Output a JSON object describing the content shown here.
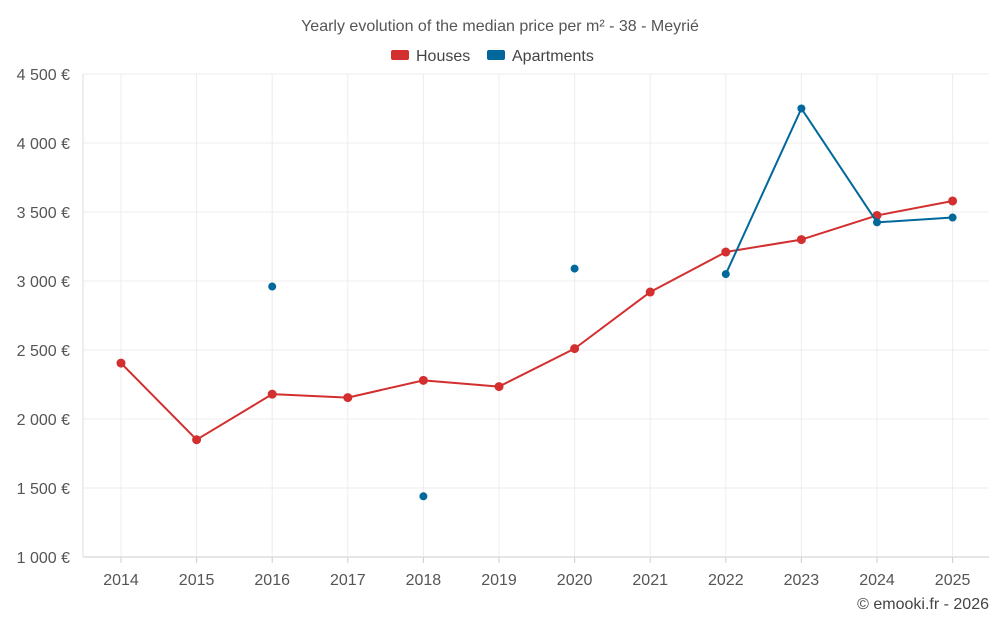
{
  "chart_data": {
    "type": "line",
    "title": "Yearly evolution of the median price per m² - 38 - Meyrié",
    "xlabel": "",
    "ylabel": "",
    "categories": [
      "2014",
      "2015",
      "2016",
      "2017",
      "2018",
      "2019",
      "2020",
      "2021",
      "2022",
      "2023",
      "2024",
      "2025"
    ],
    "ylim": [
      1000,
      4500
    ],
    "yticks": [
      1000,
      1500,
      2000,
      2500,
      3000,
      3500,
      4000,
      4500
    ],
    "ytick_labels": [
      "1 000 €",
      "1 500 €",
      "2 000 €",
      "2 500 €",
      "3 000 €",
      "3 500 €",
      "4 000 €",
      "4 500 €"
    ],
    "grid": true,
    "legend_position": "top-center",
    "series": [
      {
        "name": "Houses",
        "color": "#d32f2f",
        "values": [
          2405,
          1850,
          2180,
          2155,
          2280,
          2235,
          2510,
          2920,
          3210,
          3300,
          3475,
          3580
        ]
      },
      {
        "name": "Apartments",
        "color": "#01689b",
        "values": [
          null,
          null,
          2960,
          null,
          1440,
          null,
          3090,
          null,
          3050,
          4250,
          3425,
          3460
        ]
      }
    ]
  },
  "footer": {
    "credit": "© emooki.fr - 2026"
  }
}
